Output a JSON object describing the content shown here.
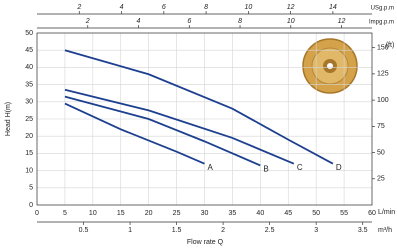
{
  "chart_data": {
    "type": "line",
    "xlabel": "Flow rate Q",
    "xunit": "L/min",
    "ylabel": "Head H(m)",
    "xlim": [
      0,
      60
    ],
    "xticks": [
      0,
      5,
      10,
      15,
      20,
      25,
      30,
      35,
      40,
      45,
      50,
      55,
      60
    ],
    "ylim": [
      0,
      50
    ],
    "yticks": [
      0,
      5,
      10,
      15,
      20,
      25,
      30,
      35,
      40,
      45,
      50
    ],
    "y2label": "(ft)",
    "y2lim": [
      0,
      164
    ],
    "y2ticks": [
      25,
      50,
      75,
      100,
      125,
      150
    ],
    "top_axes": [
      {
        "label": "USg.p.m",
        "lim": [
          0,
          15.85
        ],
        "ticks": [
          2,
          4,
          6,
          8,
          10,
          12,
          14
        ]
      },
      {
        "label": "Impg.p.m",
        "lim": [
          0,
          13.2
        ],
        "ticks": [
          2,
          4,
          6,
          8,
          10,
          12
        ]
      }
    ],
    "bottom2": {
      "label": "m³/h",
      "lim": [
        0,
        3.6
      ],
      "ticks": [
        0.5,
        1,
        1.5,
        2,
        2.5,
        3,
        3.5
      ]
    },
    "grid": true,
    "series": [
      {
        "name": "A",
        "color": "#1d3f8f",
        "x": [
          5,
          15,
          25,
          30
        ],
        "values": [
          29.5,
          22,
          15.5,
          12
        ]
      },
      {
        "name": "B",
        "color": "#1d3f8f",
        "x": [
          5,
          20,
          30,
          40
        ],
        "values": [
          31.5,
          25,
          18.5,
          11.5
        ]
      },
      {
        "name": "C",
        "color": "#1d3f8f",
        "x": [
          5,
          20,
          35,
          46
        ],
        "values": [
          33.5,
          27.5,
          19.5,
          12
        ]
      },
      {
        "name": "D",
        "color": "#1d3f8f",
        "x": [
          5,
          20,
          35,
          45,
          53
        ],
        "values": [
          45,
          38,
          28,
          19,
          12
        ]
      }
    ]
  }
}
